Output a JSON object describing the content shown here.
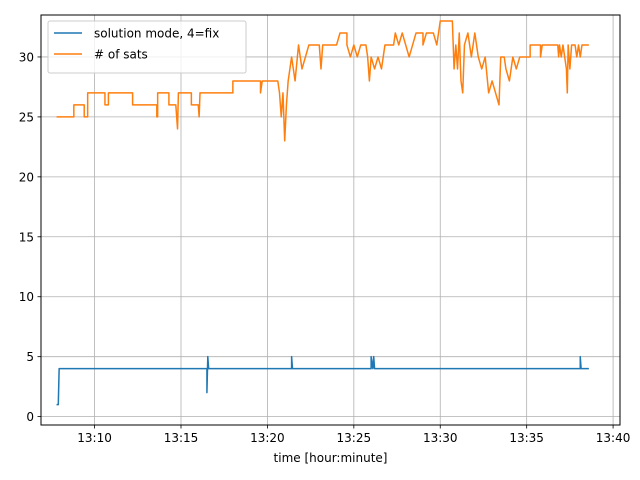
{
  "chart_data": {
    "type": "line",
    "title": "",
    "xlabel": "time [hour:minute]",
    "ylabel": "",
    "x_ticks": [
      "13:10",
      "13:15",
      "13:20",
      "13:25",
      "13:30",
      "13:35",
      "13:40"
    ],
    "x_tick_minutes": [
      10,
      15,
      20,
      25,
      30,
      35,
      40
    ],
    "xlim_minutes": [
      6.9,
      40.4
    ],
    "y_ticks": [
      0,
      5,
      10,
      15,
      20,
      25,
      30
    ],
    "ylim": [
      -0.7,
      33.5
    ],
    "grid": true,
    "legend": "upper-left",
    "series": [
      {
        "name": "solution mode, 4=fix",
        "color": "#1f77b4",
        "points": [
          [
            7.8,
            1
          ],
          [
            7.9,
            1
          ],
          [
            7.95,
            4
          ],
          [
            16.5,
            4
          ],
          [
            16.5,
            2
          ],
          [
            16.55,
            5
          ],
          [
            16.6,
            4
          ],
          [
            21.4,
            4
          ],
          [
            21.4,
            5
          ],
          [
            21.45,
            4
          ],
          [
            26.0,
            4
          ],
          [
            26.0,
            5
          ],
          [
            26.1,
            4
          ],
          [
            26.15,
            5
          ],
          [
            26.2,
            4
          ],
          [
            38.1,
            4
          ],
          [
            38.1,
            5
          ],
          [
            38.15,
            4
          ],
          [
            38.6,
            4
          ]
        ]
      },
      {
        "name": "# of sats",
        "color": "#ff7f0e",
        "points": [
          [
            7.8,
            25
          ],
          [
            8.8,
            25
          ],
          [
            8.8,
            26
          ],
          [
            9.4,
            26
          ],
          [
            9.4,
            25
          ],
          [
            9.6,
            25
          ],
          [
            9.6,
            27
          ],
          [
            10.6,
            27
          ],
          [
            10.6,
            26
          ],
          [
            10.8,
            26
          ],
          [
            10.8,
            27
          ],
          [
            12.2,
            27
          ],
          [
            12.2,
            26
          ],
          [
            13.6,
            26
          ],
          [
            13.6,
            25
          ],
          [
            13.65,
            25
          ],
          [
            13.65,
            27
          ],
          [
            14.3,
            27
          ],
          [
            14.3,
            26
          ],
          [
            14.7,
            26
          ],
          [
            14.8,
            24
          ],
          [
            14.85,
            27
          ],
          [
            15.6,
            27
          ],
          [
            15.6,
            26
          ],
          [
            16.0,
            26
          ],
          [
            16.05,
            25
          ],
          [
            16.1,
            27
          ],
          [
            18.0,
            27
          ],
          [
            18.0,
            28
          ],
          [
            19.6,
            28
          ],
          [
            19.6,
            27
          ],
          [
            19.7,
            28
          ],
          [
            20.6,
            28
          ],
          [
            20.7,
            27
          ],
          [
            20.8,
            25
          ],
          [
            20.9,
            27
          ],
          [
            21.0,
            23
          ],
          [
            21.1,
            26
          ],
          [
            21.2,
            28
          ],
          [
            21.4,
            30
          ],
          [
            21.6,
            28
          ],
          [
            21.8,
            31
          ],
          [
            22.0,
            29
          ],
          [
            22.2,
            30
          ],
          [
            22.4,
            31
          ],
          [
            23.0,
            31
          ],
          [
            23.1,
            29
          ],
          [
            23.2,
            31
          ],
          [
            24.0,
            31
          ],
          [
            24.2,
            32
          ],
          [
            24.6,
            32
          ],
          [
            24.6,
            31
          ],
          [
            24.8,
            30
          ],
          [
            25.0,
            31
          ],
          [
            25.2,
            30
          ],
          [
            25.4,
            31
          ],
          [
            25.7,
            31
          ],
          [
            25.8,
            30
          ],
          [
            25.9,
            28
          ],
          [
            26.0,
            30
          ],
          [
            26.2,
            29
          ],
          [
            26.4,
            30
          ],
          [
            26.6,
            29
          ],
          [
            26.8,
            31
          ],
          [
            27.3,
            31
          ],
          [
            27.4,
            32
          ],
          [
            27.6,
            31
          ],
          [
            27.8,
            32
          ],
          [
            28.0,
            31
          ],
          [
            28.2,
            30
          ],
          [
            28.4,
            31
          ],
          [
            28.6,
            32
          ],
          [
            29.0,
            32
          ],
          [
            29.0,
            31
          ],
          [
            29.2,
            32
          ],
          [
            29.6,
            32
          ],
          [
            29.8,
            31
          ],
          [
            30.0,
            33
          ],
          [
            30.7,
            33
          ],
          [
            30.8,
            29
          ],
          [
            30.9,
            31
          ],
          [
            31.0,
            29
          ],
          [
            31.1,
            32
          ],
          [
            31.2,
            28
          ],
          [
            31.3,
            27
          ],
          [
            31.4,
            31
          ],
          [
            31.6,
            32
          ],
          [
            31.8,
            30
          ],
          [
            32.0,
            32
          ],
          [
            32.2,
            30
          ],
          [
            32.4,
            29
          ],
          [
            32.6,
            30
          ],
          [
            32.8,
            27
          ],
          [
            33.0,
            28
          ],
          [
            33.2,
            27
          ],
          [
            33.4,
            26
          ],
          [
            33.5,
            30
          ],
          [
            33.7,
            30
          ],
          [
            33.8,
            29
          ],
          [
            34.0,
            28
          ],
          [
            34.2,
            30
          ],
          [
            34.4,
            29
          ],
          [
            34.6,
            30
          ],
          [
            35.2,
            30
          ],
          [
            35.2,
            31
          ],
          [
            35.8,
            31
          ],
          [
            35.8,
            30
          ],
          [
            35.9,
            31
          ],
          [
            36.8,
            31
          ],
          [
            36.85,
            30
          ],
          [
            36.9,
            31
          ],
          [
            37.0,
            30
          ],
          [
            37.1,
            31
          ],
          [
            37.2,
            30
          ],
          [
            37.3,
            29
          ],
          [
            37.35,
            27
          ],
          [
            37.4,
            31
          ],
          [
            37.5,
            29
          ],
          [
            37.6,
            31
          ],
          [
            37.8,
            31
          ],
          [
            37.9,
            30
          ],
          [
            38.0,
            31
          ],
          [
            38.1,
            30
          ],
          [
            38.2,
            31
          ],
          [
            38.6,
            31
          ]
        ]
      }
    ]
  }
}
